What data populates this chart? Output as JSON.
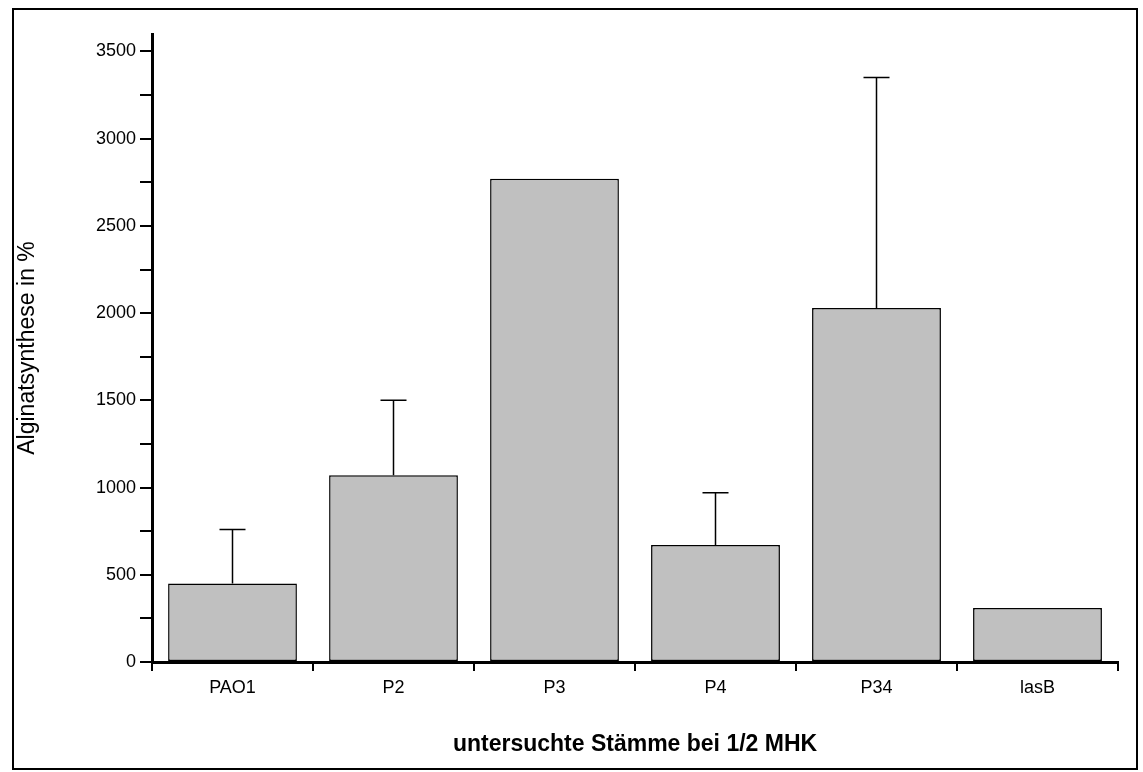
{
  "chart_data": {
    "type": "bar",
    "xlabel": "untersuchte Stämme bei 1/2 MHK",
    "ylabel": "Alginatsynthese in %",
    "categories": [
      "PAO1",
      "P2",
      "P3",
      "P4",
      "P34",
      "lasB"
    ],
    "values": [
      450,
      1070,
      2770,
      670,
      2030,
      310
    ],
    "errors": [
      [
        450,
        760
      ],
      [
        1070,
        1500
      ],
      null,
      [
        670,
        970
      ],
      [
        2030,
        3350
      ],
      null
    ],
    "color": "#c0c0c0",
    "ylim": [
      0,
      3600
    ],
    "yticks": [
      0,
      {
        "value": 250,
        "label": null
      },
      500,
      {
        "value": 750,
        "label": null
      },
      1000,
      {
        "value": 1250,
        "label": null
      },
      1500,
      {
        "value": 1750,
        "label": null
      },
      2000,
      {
        "value": 2250,
        "label": null
      },
      2500,
      {
        "value": 2750,
        "label": null
      },
      3000,
      {
        "value": 3250,
        "label": null
      },
      3500
    ],
    "grid": false,
    "legend": false
  }
}
